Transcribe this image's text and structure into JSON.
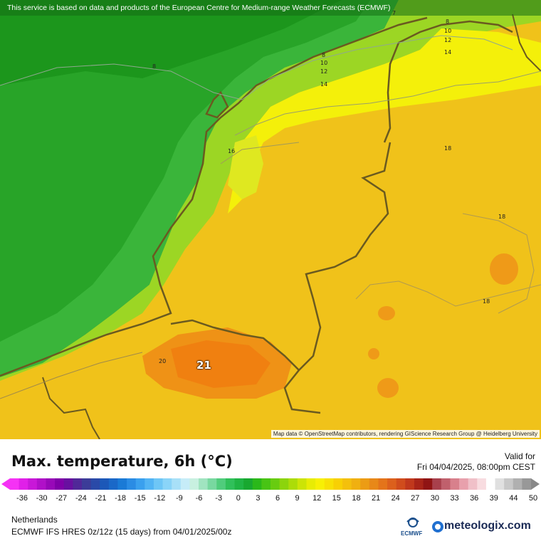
{
  "map": {
    "banner": "This service is based on data and products of the European Centre for Medium-range Weather Forecasts (ECMWF)",
    "attribution": "Map data © OpenStreetMap contributors, rendering GIScience Research Group @ Heidelberg University",
    "isolines": [
      {
        "id": "iso-8-west",
        "text": "8"
      },
      {
        "id": "iso-7",
        "text": "7"
      },
      {
        "id": "iso-8-ne",
        "text": "8"
      },
      {
        "id": "iso-10-ne",
        "text": "10"
      },
      {
        "id": "iso-12-ne",
        "text": "12"
      },
      {
        "id": "iso-14-ne",
        "text": "14"
      },
      {
        "id": "iso-8-mid",
        "text": "8"
      },
      {
        "id": "iso-10-mid",
        "text": "10"
      },
      {
        "id": "iso-12-mid",
        "text": "12"
      },
      {
        "id": "iso-14-mid",
        "text": "14"
      },
      {
        "id": "iso-16",
        "text": "16"
      },
      {
        "id": "iso-18-ne",
        "text": "18"
      },
      {
        "id": "iso-18-e",
        "text": "18"
      },
      {
        "id": "iso-18-se",
        "text": "18"
      },
      {
        "id": "iso-20",
        "text": "20"
      }
    ],
    "max_value": "21",
    "colors": {
      "land_warm": "#f0c21a",
      "sea_green": "#3ab53a",
      "yellow_band": "#f4f00a",
      "orange_hot": "#ef9216",
      "border": "#6a5a20"
    }
  },
  "legend": {
    "title": "Max. temperature, 6h (°C)",
    "valid_label": "Valid for",
    "valid_time": "Fri 04/04/2025, 08:00pm CEST",
    "region": "Netherlands",
    "model": "ECMWF IFS HRES 0z/12z (15 days) from  04/01/2025/00z",
    "ticks": [
      "-36",
      "-30",
      "-27",
      "-24",
      "-21",
      "-18",
      "-15",
      "-12",
      "-9",
      "-6",
      "-3",
      "0",
      "3",
      "6",
      "9",
      "12",
      "15",
      "18",
      "21",
      "24",
      "27",
      "30",
      "33",
      "36",
      "39",
      "44",
      "50"
    ],
    "scale_colors": [
      "#f532f5",
      "#e020e8",
      "#c818d8",
      "#b010c8",
      "#9808b8",
      "#8000a8",
      "#6810a0",
      "#502898",
      "#3c3c98",
      "#2a4aa8",
      "#1c58b8",
      "#1a68c8",
      "#1a7ad6",
      "#2a8ce4",
      "#3aa0ee",
      "#52b4f4",
      "#6ec6f6",
      "#8ad4f8",
      "#a8e0f8",
      "#c6ecf8",
      "#c8f0e0",
      "#a0e4c0",
      "#78d8a0",
      "#50cc7c",
      "#30c05a",
      "#20b444",
      "#18a830",
      "#2ab81a",
      "#48c414",
      "#68cc10",
      "#8cd40c",
      "#acdc08",
      "#cce406",
      "#e8ec04",
      "#f8f004",
      "#f8e004",
      "#f8d004",
      "#f4c00c",
      "#f0b010",
      "#ec9c14",
      "#e88818",
      "#e4741a",
      "#dc601c",
      "#d04c1c",
      "#c0381c",
      "#a82418",
      "#901414",
      "#a8404c",
      "#c0606c",
      "#d8808c",
      "#e8a0ac",
      "#f0c0c8",
      "#f8dce0",
      "#ffffff",
      "#e0e0e0",
      "#c8c8c8",
      "#b0b0b0",
      "#989898"
    ],
    "ecmwf_label": "ECMWF",
    "brand": "meteologix.com"
  }
}
